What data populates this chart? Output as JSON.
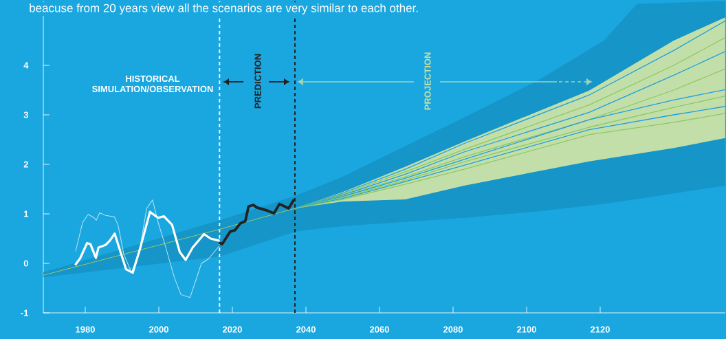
{
  "chart_data": {
    "type": "line",
    "subtitle": "beacuse from 20 years view all the scenarios are very similar to each other.",
    "annotations": [
      "HISTORICAL SIMULATION/OBSERVATION",
      "PREDICTION",
      "PROJECTION"
    ],
    "xlim": [
      1968.6,
      2154
    ],
    "ylim": [
      -1,
      5.3
    ],
    "xticks": [
      1980,
      2000,
      2020,
      2040,
      2060,
      2080,
      2100,
      2120
    ],
    "yticks": [
      -1,
      0,
      1,
      2,
      3,
      4
    ],
    "ref_lines": [
      {
        "axis": "x",
        "value": 2016.5,
        "color": "#ffffff",
        "line_style": "dashed"
      },
      {
        "axis": "x",
        "value": 2037,
        "color": "#222222",
        "line_style": "dashed"
      }
    ],
    "series": [
      {
        "color": "#a5cf5a",
        "x": [
          1968.6,
          2016.6,
          2037,
          2041,
          2050,
          2085,
          2103,
          2121,
          2130,
          2154
        ],
        "values": [
          -0.24,
          0.69,
          1.11,
          null,
          null,
          null,
          null,
          null,
          null,
          null
        ],
        "lower": [
          -0.28,
          0.14,
          0.64,
          0.68,
          0.75,
          0.93,
          1.05,
          1.2,
          1.3,
          1.57
        ],
        "upper": [
          -0.18,
          0.87,
          1.36,
          1.48,
          1.75,
          3.02,
          3.69,
          4.5,
          5.24,
          5.3
        ]
      },
      {
        "color": "#1e9fe0",
        "x": [
          2037,
          2050,
          2067,
          2083,
          2117,
          2140,
          2154
        ],
        "values": [
          1.11,
          1.42,
          1.9,
          2.42,
          3.4,
          4.3,
          4.9
        ]
      },
      {
        "color": "#8dc864",
        "x": [
          2037,
          2050,
          2067,
          2083,
          2117,
          2140,
          2154
        ],
        "values": [
          1.11,
          1.4,
          1.85,
          2.3,
          3.2,
          4.0,
          4.56
        ]
      },
      {
        "color": "#1e9fe0",
        "x": [
          2037,
          2050,
          2067,
          2083,
          2117,
          2140,
          2154
        ],
        "values": [
          1.11,
          1.38,
          1.8,
          2.25,
          3.05,
          3.8,
          4.28
        ]
      },
      {
        "color": "#8dc864",
        "x": [
          2037,
          2050,
          2067,
          2083,
          2117,
          2140,
          2154
        ],
        "values": [
          1.11,
          1.36,
          1.75,
          2.15,
          2.9,
          3.5,
          3.93
        ],
        "lower": [
          1.11,
          1.25,
          1.29,
          1.57,
          2.06,
          2.33,
          2.53
        ],
        "upper": [
          1.11,
          1.44,
          1.95,
          2.46,
          3.49,
          4.5,
          4.97
        ]
      },
      {
        "color": "#1e9fe0",
        "x": [
          2037,
          2050,
          2067,
          2083,
          2117,
          2140,
          2154
        ],
        "values": [
          1.11,
          1.35,
          1.72,
          2.1,
          2.9,
          3.3,
          3.51
        ]
      },
      {
        "color": "#8dc864",
        "x": [
          2037,
          2050,
          2067,
          2083,
          2117,
          2140,
          2154
        ],
        "values": [
          1.11,
          1.33,
          1.68,
          2.05,
          2.75,
          3.15,
          3.38
        ]
      },
      {
        "color": "#1e9fe0",
        "x": [
          2037,
          2050,
          2067,
          2083,
          2117,
          2140,
          2154
        ],
        "values": [
          1.11,
          1.31,
          1.65,
          1.98,
          2.7,
          3.0,
          3.17
        ]
      },
      {
        "color": "#8dc864",
        "x": [
          2037,
          2050,
          2067,
          2083,
          2117,
          2140,
          2154
        ],
        "values": [
          1.11,
          1.29,
          1.6,
          1.9,
          2.6,
          2.85,
          3.03
        ]
      },
      {
        "color": "#bfe3f3",
        "x": [
          1977.4,
          1979.3,
          1980.8,
          1982.4,
          1983.0,
          1983.9,
          1985.5,
          1987.9,
          1988.9,
          1990.5,
          1992.6,
          1994.8,
          1996.7,
          1998.3,
          1999.8,
          2001.7,
          2004.2,
          2006.0,
          2008.5,
          2011.6,
          2013.5,
          2016.3
        ],
        "values": [
          0.25,
          0.83,
          0.99,
          0.92,
          0.87,
          1.02,
          0.97,
          0.94,
          0.78,
          0.18,
          -0.19,
          0.27,
          1.11,
          1.28,
          0.83,
          0.37,
          -0.28,
          -0.63,
          -0.69,
          0.0,
          0.09,
          0.34
        ]
      },
      {
        "color": "#ffffff",
        "x": [
          1977.4,
          1978.6,
          1980.5,
          1981.4,
          1982.9,
          1983.6,
          1985.5,
          1986.7,
          1988.0,
          1989.2,
          1991.1,
          1992.9,
          1994.8,
          1997.6,
          1999.8,
          2001.4,
          2003.6,
          2005.7,
          2007.3,
          2009.2,
          2012.3,
          2014.1,
          2016.3
        ],
        "values": [
          -0.02,
          0.1,
          0.41,
          0.39,
          0.11,
          0.32,
          0.37,
          0.46,
          0.6,
          0.32,
          -0.12,
          -0.19,
          0.27,
          1.04,
          0.92,
          0.95,
          0.78,
          0.23,
          0.07,
          0.32,
          0.59,
          0.5,
          0.46
        ]
      },
      {
        "color": "#222222",
        "x": [
          2016.6,
          2017.2,
          2019.4,
          2020.7,
          2022.2,
          2023.5,
          2024.4,
          2025.7,
          2026.6,
          2029.7,
          2031.3,
          2032.8,
          2035.3,
          2036.6
        ],
        "values": [
          0.41,
          0.39,
          0.64,
          0.67,
          0.81,
          0.85,
          1.15,
          1.18,
          1.13,
          1.06,
          1.01,
          1.2,
          1.11,
          1.27
        ]
      }
    ]
  }
}
